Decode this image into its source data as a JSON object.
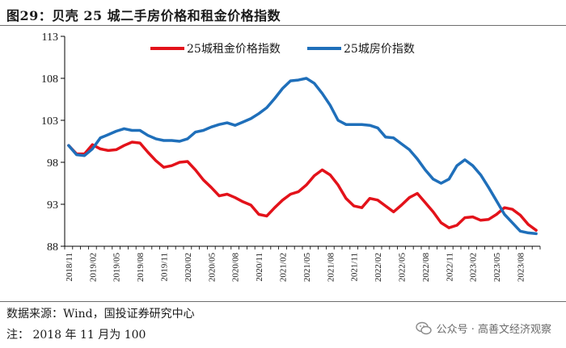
{
  "title": "图29：贝壳 25 城二手房价格和租金价格指数",
  "source": "数据来源：Wind，国投证券研究中心",
  "note": "注：  2018 年 11 月为 100",
  "watermark": "公众号 · 高善文经济观察",
  "colors": {
    "rent": "#e3121a",
    "house": "#1f6fba"
  },
  "chart_data": {
    "type": "line",
    "ylim": [
      88,
      113
    ],
    "yticks": [
      88,
      93,
      98,
      103,
      108,
      113
    ],
    "xticks": [
      "2018/11",
      "2019/02",
      "2019/05",
      "2019/08",
      "2019/11",
      "2020/02",
      "2020/05",
      "2020/08",
      "2020/11",
      "2021/02",
      "2021/05",
      "2021/08",
      "2021/11",
      "2022/02",
      "2022/05",
      "2022/08",
      "2022/11",
      "2023/02",
      "2023/05",
      "2023/08"
    ],
    "x": [
      "2018/11",
      "2018/12",
      "2019/01",
      "2019/02",
      "2019/03",
      "2019/04",
      "2019/05",
      "2019/06",
      "2019/07",
      "2019/08",
      "2019/09",
      "2019/10",
      "2019/11",
      "2019/12",
      "2020/01",
      "2020/02",
      "2020/03",
      "2020/04",
      "2020/05",
      "2020/06",
      "2020/07",
      "2020/08",
      "2020/09",
      "2020/10",
      "2020/11",
      "2020/12",
      "2021/01",
      "2021/02",
      "2021/03",
      "2021/04",
      "2021/05",
      "2021/06",
      "2021/07",
      "2021/08",
      "2021/09",
      "2021/10",
      "2021/11",
      "2021/12",
      "2022/01",
      "2022/02",
      "2022/03",
      "2022/04",
      "2022/05",
      "2022/06",
      "2022/07",
      "2022/08",
      "2022/09",
      "2022/10",
      "2022/11",
      "2022/12",
      "2023/01",
      "2023/02",
      "2023/03",
      "2023/04",
      "2023/05",
      "2023/06",
      "2023/07",
      "2023/08",
      "2023/09",
      "2023/10"
    ],
    "series": [
      {
        "name": "25城租金价格指数",
        "color": "#e3121a",
        "values": [
          100.0,
          99.0,
          99.0,
          100.1,
          99.6,
          99.4,
          99.5,
          100.0,
          100.4,
          100.3,
          99.2,
          98.2,
          97.4,
          97.6,
          98.0,
          98.1,
          97.1,
          95.9,
          95.0,
          94.0,
          94.2,
          93.8,
          93.3,
          92.9,
          91.8,
          91.6,
          92.6,
          93.5,
          94.2,
          94.5,
          95.3,
          96.4,
          97.1,
          96.5,
          95.3,
          93.7,
          92.8,
          92.6,
          93.7,
          93.5,
          92.8,
          92.1,
          92.9,
          93.8,
          94.3,
          93.2,
          92.1,
          90.8,
          90.2,
          90.5,
          91.4,
          91.5,
          91.1,
          91.2,
          91.8,
          92.6,
          92.4,
          91.7,
          90.6,
          89.9
        ]
      },
      {
        "name": "25城房价指数",
        "color": "#1f6fba",
        "values": [
          100.0,
          98.9,
          98.8,
          99.6,
          100.9,
          101.3,
          101.7,
          102.0,
          101.8,
          101.8,
          101.2,
          100.8,
          100.6,
          100.6,
          100.5,
          100.8,
          101.6,
          101.8,
          102.2,
          102.5,
          102.7,
          102.4,
          102.8,
          103.2,
          103.8,
          104.5,
          105.6,
          106.8,
          107.7,
          107.8,
          108.0,
          107.4,
          106.2,
          104.8,
          103.0,
          102.5,
          102.5,
          102.5,
          102.4,
          102.1,
          101.0,
          100.9,
          100.2,
          99.5,
          98.4,
          97.1,
          96.0,
          95.5,
          96.0,
          97.6,
          98.3,
          97.6,
          96.5,
          95.0,
          93.4,
          91.8,
          90.8,
          89.8,
          89.6,
          89.5
        ]
      }
    ]
  }
}
